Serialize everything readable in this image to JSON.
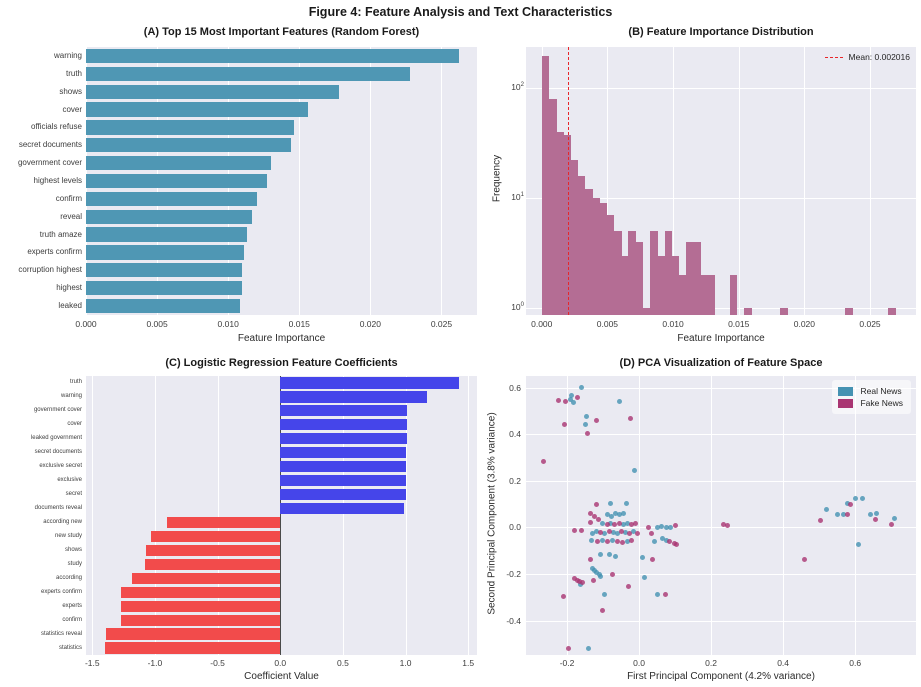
{
  "figure": {
    "title": "Figure 4: Feature Analysis and Text Characteristics"
  },
  "chart_data": [
    {
      "id": "A",
      "type": "bar",
      "orientation": "horizontal",
      "title": "(A) Top 15 Most Important Features (Random Forest)",
      "xlabel": "Feature Importance",
      "bar_color": "#4f97b4",
      "grid": true,
      "xlim": [
        0,
        0.0275
      ],
      "x_ticks": [
        0,
        0.005,
        0.01,
        0.015,
        0.02,
        0.025
      ],
      "x_tick_labels": [
        "0.000",
        "0.005",
        "0.010",
        "0.015",
        "0.020",
        "0.025"
      ],
      "categories": [
        "warning",
        "truth",
        "shows",
        "cover",
        "officials refuse",
        "secret documents",
        "government cover",
        "highest levels",
        "confirm",
        "reveal",
        "truth amaze",
        "experts confirm",
        "corruption highest",
        "highest",
        "leaked"
      ],
      "values": [
        0.0262,
        0.0228,
        0.0178,
        0.0156,
        0.0146,
        0.0144,
        0.013,
        0.0127,
        0.012,
        0.0117,
        0.0113,
        0.0111,
        0.011,
        0.011,
        0.0108
      ]
    },
    {
      "id": "B",
      "type": "histogram",
      "title": "(B) Feature Importance Distribution",
      "xlabel": "Feature Importance",
      "ylabel": "Frequency",
      "yscale": "log",
      "bar_color": "#b46d94",
      "mean_color": "#e8262a",
      "mean": 0.002016,
      "legend_label": "Mean: 0.002016",
      "grid": true,
      "xlim": [
        -0.0012,
        0.0285
      ],
      "x_ticks": [
        0,
        0.005,
        0.01,
        0.015,
        0.02,
        0.025
      ],
      "x_tick_labels": [
        "0.000",
        "0.005",
        "0.010",
        "0.015",
        "0.020",
        "0.025"
      ],
      "y_ticks_exp": [
        0,
        1,
        2
      ],
      "bin_start": 0,
      "bin_width": 0.00055,
      "counts": [
        195,
        80,
        40,
        37,
        22,
        16,
        12,
        10,
        9,
        7,
        5,
        3,
        5,
        4,
        1,
        5,
        3,
        5,
        3,
        2,
        4,
        4,
        2,
        2,
        0,
        0,
        2,
        0,
        1,
        0,
        0,
        0,
        0,
        1,
        0,
        0,
        0,
        0,
        0,
        0,
        0,
        0,
        1,
        0,
        0,
        0,
        0,
        0,
        1
      ]
    },
    {
      "id": "C",
      "type": "bar",
      "orientation": "horizontal",
      "title": "(C) Logistic Regression Feature Coefficients",
      "xlabel": "Coefficient Value",
      "pos_color": "#4545ea",
      "neg_color": "#f24b4b",
      "zero_line_color": "#4a4a4a",
      "grid": true,
      "xlim": [
        -1.55,
        1.57
      ],
      "x_ticks": [
        -1.5,
        -1.0,
        -0.5,
        0.0,
        0.5,
        1.0,
        1.5
      ],
      "x_tick_labels": [
        "-1.5",
        "-1.0",
        "-0.5",
        "0.0",
        "0.5",
        "1.0",
        "1.5"
      ],
      "categories": [
        "truth",
        "warning",
        "government cover",
        "cover",
        "leaked government",
        "secret documents",
        "exclusive secret",
        "exclusive",
        "secret",
        "documents reveal",
        "according new",
        "new study",
        "shows",
        "study",
        "according",
        "experts confirm",
        "experts",
        "confirm",
        "statistics reveal",
        "statistics"
      ],
      "values": [
        1.43,
        1.17,
        1.01,
        1.01,
        1.01,
        1.0,
        1.0,
        1.0,
        1.0,
        0.99,
        -0.9,
        -1.03,
        -1.07,
        -1.08,
        -1.18,
        -1.27,
        -1.27,
        -1.27,
        -1.39,
        -1.4
      ]
    },
    {
      "id": "D",
      "type": "scatter",
      "title": "(D) PCA Visualization of Feature Space",
      "xlabel": "First Principal Component (4.2% variance)",
      "ylabel": "Second Principal Component (3.8% variance)",
      "grid": true,
      "legend_position": "upper right",
      "xlim": [
        -0.314,
        0.769
      ],
      "ylim": [
        -0.548,
        0.651
      ],
      "x_ticks": [
        -0.2,
        0.0,
        0.2,
        0.4,
        0.6
      ],
      "x_tick_labels": [
        "-0.2",
        "0.0",
        "0.2",
        "0.4",
        "0.6"
      ],
      "y_ticks": [
        -0.4,
        -0.2,
        0.0,
        0.2,
        0.4,
        0.6
      ],
      "y_tick_labels": [
        "-0.4",
        "-0.2",
        "0.0",
        "0.2",
        "0.4",
        "0.6"
      ],
      "series": [
        {
          "name": "Real News",
          "color": "#4592b2",
          "points": [
            [
              -0.16,
              0.603
            ],
            [
              -0.19,
              0.551
            ],
            [
              -0.187,
              0.567
            ],
            [
              -0.183,
              0.535
            ],
            [
              -0.055,
              0.541
            ],
            [
              -0.145,
              0.475
            ],
            [
              -0.148,
              0.441
            ],
            [
              -0.014,
              0.247
            ],
            [
              -0.078,
              0.101
            ],
            [
              -0.034,
              0.104
            ],
            [
              -0.088,
              0.054
            ],
            [
              -0.076,
              0.049
            ],
            [
              -0.065,
              0.061
            ],
            [
              -0.053,
              0.057
            ],
            [
              -0.042,
              0.061
            ],
            [
              -0.101,
              0.018
            ],
            [
              -0.078,
              0.018
            ],
            [
              -0.044,
              0.011
            ],
            [
              -0.032,
              0.018
            ],
            [
              -0.129,
              -0.025
            ],
            [
              -0.117,
              -0.018
            ],
            [
              -0.095,
              -0.025
            ],
            [
              -0.071,
              -0.022
            ],
            [
              -0.06,
              -0.025
            ],
            [
              -0.037,
              -0.022
            ],
            [
              -0.015,
              -0.018
            ],
            [
              -0.132,
              -0.054
            ],
            [
              -0.101,
              -0.057
            ],
            [
              -0.074,
              -0.057
            ],
            [
              -0.032,
              -0.061
            ],
            [
              0.051,
              0.001
            ],
            [
              0.062,
              0.004
            ],
            [
              0.075,
              0.002
            ],
            [
              0.088,
              0.002
            ],
            [
              0.042,
              -0.061
            ],
            [
              0.065,
              -0.046
            ],
            [
              0.077,
              -0.054
            ],
            [
              -0.106,
              -0.118
            ],
            [
              -0.083,
              -0.114
            ],
            [
              -0.065,
              -0.126
            ],
            [
              0.009,
              -0.128
            ],
            [
              -0.13,
              -0.175
            ],
            [
              -0.123,
              -0.185
            ],
            [
              -0.117,
              -0.195
            ],
            [
              -0.111,
              -0.204
            ],
            [
              -0.106,
              -0.212
            ],
            [
              -0.163,
              -0.247
            ],
            [
              -0.097,
              -0.29
            ],
            [
              0.016,
              -0.214
            ],
            [
              0.051,
              -0.29
            ],
            [
              -0.141,
              -0.52
            ],
            [
              0.6,
              0.126
            ],
            [
              0.621,
              0.126
            ],
            [
              0.579,
              0.101
            ],
            [
              0.52,
              0.078
            ],
            [
              0.55,
              0.054
            ],
            [
              0.568,
              0.057
            ],
            [
              0.642,
              0.057
            ],
            [
              0.658,
              0.061
            ],
            [
              0.71,
              0.04
            ],
            [
              0.609,
              -0.071
            ]
          ]
        },
        {
          "name": "Fake News",
          "color": "#a93572",
          "points": [
            [
              -0.225,
              0.545
            ],
            [
              -0.205,
              0.543
            ],
            [
              -0.17,
              0.56
            ],
            [
              -0.119,
              0.458
            ],
            [
              -0.208,
              0.444
            ],
            [
              -0.023,
              0.469
            ],
            [
              -0.143,
              0.406
            ],
            [
              -0.265,
              0.282
            ],
            [
              -0.117,
              0.097
            ],
            [
              -0.136,
              0.061
            ],
            [
              -0.125,
              0.049
            ],
            [
              -0.114,
              0.035
            ],
            [
              -0.136,
              0.021
            ],
            [
              -0.089,
              0.014
            ],
            [
              -0.067,
              0.011
            ],
            [
              -0.055,
              0.015
            ],
            [
              -0.021,
              0.014
            ],
            [
              -0.009,
              0.018
            ],
            [
              -0.18,
              -0.014
            ],
            [
              -0.16,
              -0.014
            ],
            [
              -0.106,
              -0.022
            ],
            [
              -0.083,
              -0.018
            ],
            [
              -0.049,
              -0.018
            ],
            [
              -0.026,
              -0.025
            ],
            [
              -0.005,
              -0.025
            ],
            [
              -0.115,
              -0.061
            ],
            [
              -0.088,
              -0.061
            ],
            [
              -0.06,
              -0.061
            ],
            [
              -0.046,
              -0.065
            ],
            [
              -0.02,
              -0.057
            ],
            [
              0.025,
              -0.002
            ],
            [
              0.034,
              -0.025
            ],
            [
              0.1,
              0.007
            ],
            [
              0.085,
              -0.061
            ],
            [
              0.097,
              -0.068
            ],
            [
              0.104,
              -0.075
            ],
            [
              -0.134,
              -0.137
            ],
            [
              0.037,
              -0.137
            ],
            [
              -0.18,
              -0.22
            ],
            [
              -0.172,
              -0.227
            ],
            [
              -0.165,
              -0.232
            ],
            [
              -0.158,
              -0.236
            ],
            [
              -0.126,
              -0.226
            ],
            [
              -0.074,
              -0.204
            ],
            [
              -0.209,
              -0.295
            ],
            [
              -0.028,
              -0.254
            ],
            [
              0.074,
              -0.286
            ],
            [
              -0.101,
              -0.355
            ],
            [
              -0.197,
              -0.52
            ],
            [
              0.235,
              0.012
            ],
            [
              0.245,
              0.009
            ],
            [
              0.588,
              0.098
            ],
            [
              0.503,
              0.029
            ],
            [
              0.579,
              0.057
            ],
            [
              0.656,
              0.035
            ],
            [
              0.7,
              0.014
            ],
            [
              0.459,
              -0.137
            ]
          ]
        }
      ]
    }
  ]
}
